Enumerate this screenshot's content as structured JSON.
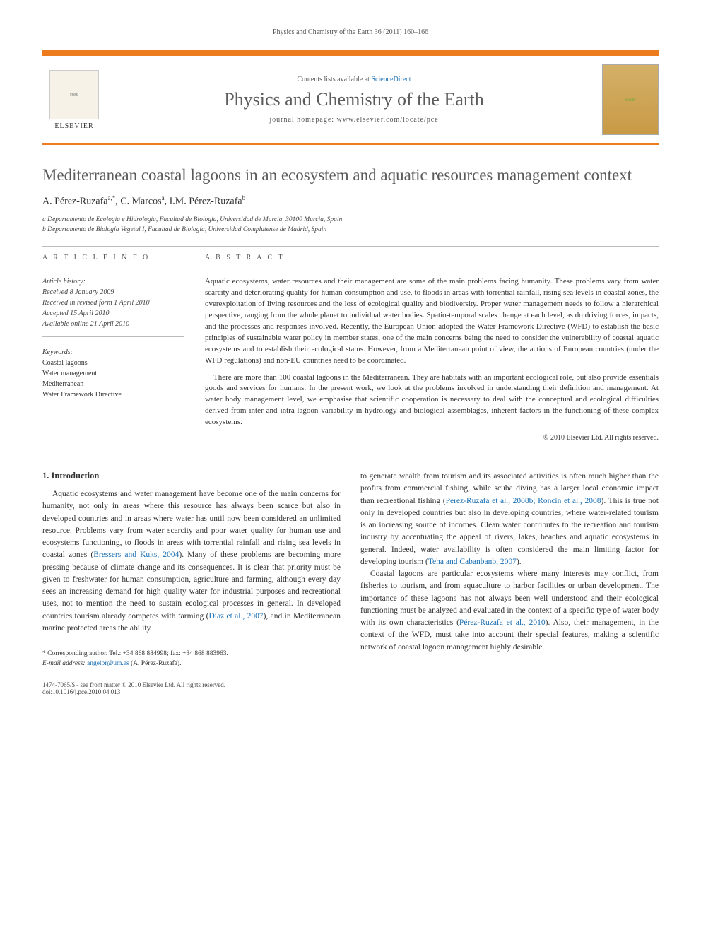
{
  "running_head": "Physics and Chemistry of the Earth 36 (2011) 160–166",
  "masthead": {
    "contents_prefix": "Contents lists available at ",
    "contents_link": "ScienceDirect",
    "journal_name": "Physics and Chemistry of the Earth",
    "homepage_prefix": "journal homepage: ",
    "homepage": "www.elsevier.com/locate/pce",
    "elsevier_label": "ELSEVIER"
  },
  "article": {
    "title": "Mediterranean coastal lagoons in an ecosystem and aquatic resources management context",
    "authors_html": "A. Pérez-Ruzafa",
    "author1": "A. Pérez-Ruzafa",
    "author1_sup": "a,*",
    "author2": ", C. Marcos",
    "author2_sup": "a",
    "author3": ", I.M. Pérez-Ruzafa",
    "author3_sup": "b",
    "affil_a": "a Departamento de Ecología e Hidrología, Facultad de Biología, Universidad de Murcia, 30100 Murcia, Spain",
    "affil_b": "b Departamento de Biología Vegetal I, Facultad de Biología, Universidad Complutense de Madrid, Spain"
  },
  "info": {
    "heading": "A R T I C L E   I N F O",
    "history_label": "Article history:",
    "received": "Received 8 January 2009",
    "revised": "Received in revised form 1 April 2010",
    "accepted": "Accepted 15 April 2010",
    "online": "Available online 21 April 2010",
    "keywords_label": "Keywords:",
    "kw1": "Coastal lagoons",
    "kw2": "Water management",
    "kw3": "Mediterranean",
    "kw4": "Water Framework Directive"
  },
  "abstract": {
    "heading": "A B S T R A C T",
    "p1": "Aquatic ecosystems, water resources and their management are some of the main problems facing humanity. These problems vary from water scarcity and deteriorating quality for human consumption and use, to floods in areas with torrential rainfall, rising sea levels in coastal zones, the overexploitation of living resources and the loss of ecological quality and biodiversity. Proper water management needs to follow a hierarchical perspective, ranging from the whole planet to individual water bodies. Spatio-temporal scales change at each level, as do driving forces, impacts, and the processes and responses involved. Recently, the European Union adopted the Water Framework Directive (WFD) to establish the basic principles of sustainable water policy in member states, one of the main concerns being the need to consider the vulnerability of coastal aquatic ecosystems and to establish their ecological status. However, from a Mediterranean point of view, the actions of European countries (under the WFD regulations) and non-EU countries need to be coordinated.",
    "p2": "There are more than 100 coastal lagoons in the Mediterranean. They are habitats with an important ecological role, but also provide essentials goods and services for humans. In the present work, we look at the problems involved in understanding their definition and management. At water body management level, we emphasise that scientific cooperation is necessary to deal with the conceptual and ecological difficulties derived from inter and intra-lagoon variability in hydrology and biological assemblages, inherent factors in the functioning of these complex ecosystems.",
    "copyright": "© 2010 Elsevier Ltd. All rights reserved."
  },
  "body": {
    "section_heading": "1. Introduction",
    "left_p1a": "Aquatic ecosystems and water management have become one of the main concerns for humanity, not only in areas where this resource has always been scarce but also in developed countries and in areas where water has until now been considered an unlimited resource. Problems vary from water scarcity and poor water quality for human use and ecosystems functioning, to floods in areas with torrential rainfall and rising sea levels in coastal zones (",
    "cite1": "Bressers and Kuks, 2004",
    "left_p1b": "). Many of these problems are becoming more pressing because of climate change and its consequences. It is clear that priority must be given to freshwater for human consumption, agriculture and farming, although every day sees an increasing demand for high quality water for industrial purposes and recreational uses, not to mention the need to sustain ecological processes in general. In developed countries tourism already competes with farming (",
    "cite2": "Diaz et al., 2007",
    "left_p1c": "), and in Mediterranean marine protected areas the ability",
    "right_p1a": "to generate wealth from tourism and its associated activities is often much higher than the profits from commercial fishing, while scuba diving has a larger local economic impact than recreational fishing (",
    "cite3": "Pérez-Ruzafa et al., 2008b; Roncin et al., 2008",
    "right_p1b": "). This is true not only in developed countries but also in developing countries, where water-related tourism is an increasing source of incomes. Clean water contributes to the recreation and tourism industry by accentuating the appeal of rivers, lakes, beaches and aquatic ecosystems in general. Indeed, water availability is often considered the main limiting factor for developing tourism (",
    "cite4": "Teha and Cabanbanb, 2007",
    "right_p1c": ").",
    "right_p2a": "Coastal lagoons are particular ecosystems where many interests may conflict, from fisheries to tourism, and from aquaculture to harbor facilities or urban development. The importance of these lagoons has not always been well understood and their ecological functioning must be analyzed and evaluated in the context of a specific type of water body with its own characteristics (",
    "cite5": "Pérez-Ruzafa et al., 2010",
    "right_p2b": "). Also, their management, in the context of the WFD, must take into account their special features, making a scientific network of coastal lagoon management highly desirable."
  },
  "footnote": {
    "corr": "* Corresponding author. Tel.: +34 868 884998; fax: +34 868 883963.",
    "email_label": "E-mail address: ",
    "email": "angelpr@um.es",
    "email_suffix": " (A. Pérez-Ruzafa)."
  },
  "footer": {
    "left": "1474-7065/$ - see front matter © 2010 Elsevier Ltd. All rights reserved.",
    "doi": "doi:10.1016/j.pce.2010.04.013"
  },
  "colors": {
    "orange": "#ec7c1e",
    "link": "#1a6fb3",
    "title_gray": "#5a5a5a"
  }
}
